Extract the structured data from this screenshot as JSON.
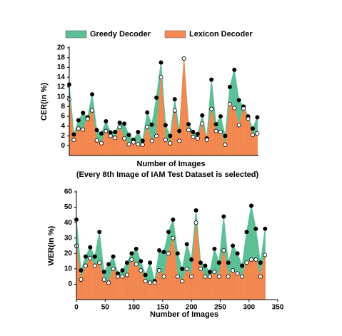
{
  "chart_data": [
    {
      "type": "area",
      "ylabel": "CER(in %)",
      "xlabel": "Number of Images",
      "subtitle": "(Every 8th Image of IAM Test Dataset is selected)",
      "x": [
        0,
        8,
        16,
        24,
        32,
        40,
        48,
        56,
        64,
        72,
        80,
        88,
        96,
        104,
        112,
        120,
        128,
        136,
        144,
        152,
        160,
        168,
        176,
        184,
        192,
        200,
        208,
        216,
        224,
        232,
        240,
        248,
        256,
        264,
        272,
        280,
        288,
        296,
        304,
        312,
        320,
        328
      ],
      "xlim": [
        0,
        330
      ],
      "ylim": [
        -2,
        20
      ],
      "yticks": [
        0,
        2,
        4,
        6,
        8,
        10,
        12,
        14,
        16,
        18,
        20
      ],
      "series": [
        {
          "name": "Greedy Decoder",
          "color": "#5dbf95",
          "values": [
            12.5,
            2.3,
            5.2,
            6.7,
            5.8,
            10.5,
            3.2,
            2.5,
            5,
            2.7,
            2.8,
            4.7,
            4.5,
            2.2,
            1.2,
            2.8,
            1,
            6.8,
            4.3,
            9.8,
            17,
            4.2,
            2,
            9.5,
            3,
            17.8,
            4.4,
            2.8,
            2.4,
            6.2,
            1.5,
            13.5,
            4.4,
            6,
            2,
            12,
            15.5,
            9.3,
            8,
            6,
            3.5,
            5.8
          ]
        },
        {
          "name": "Lexicon Decoder",
          "color": "#f58a52",
          "values": [
            9.5,
            1.2,
            3.5,
            3.3,
            5.5,
            7.2,
            1.1,
            0.5,
            3,
            2,
            1.6,
            3.8,
            1.5,
            0.3,
            0.7,
            0.3,
            0.2,
            3.8,
            1,
            2,
            14,
            1.2,
            0.5,
            7.2,
            1,
            17.8,
            3.2,
            1.8,
            1.5,
            4.5,
            1.2,
            7.5,
            3,
            2.8,
            0.2,
            8.5,
            7.7,
            4.2,
            7.6,
            5.5,
            2.2,
            2.5
          ]
        }
      ]
    },
    {
      "type": "area",
      "ylabel": "WER(in %)",
      "xlabel": "Number of Images",
      "x": [
        0,
        8,
        16,
        24,
        32,
        40,
        48,
        56,
        64,
        72,
        80,
        88,
        96,
        104,
        112,
        120,
        128,
        136,
        144,
        152,
        160,
        168,
        176,
        184,
        192,
        200,
        208,
        216,
        224,
        232,
        240,
        248,
        256,
        264,
        272,
        280,
        288,
        296,
        304,
        312,
        320,
        328
      ],
      "xlim": [
        0,
        350
      ],
      "xticks": [
        0,
        50,
        100,
        150,
        200,
        250,
        300,
        350
      ],
      "ylim": [
        -10,
        60
      ],
      "yticks": [
        0,
        10,
        20,
        30,
        40,
        50,
        60
      ],
      "series": [
        {
          "color": "#5dbf95",
          "values": [
            42,
            9,
            18,
            24,
            18,
            34,
            8,
            13,
            18,
            7,
            9,
            14,
            20,
            23,
            15,
            6,
            14,
            2,
            22,
            21,
            34,
            42,
            20,
            10,
            26,
            16,
            48,
            14,
            12,
            8,
            23,
            14,
            44,
            14,
            25,
            20,
            12,
            34,
            51,
            36,
            14,
            36
          ]
        },
        {
          "color": "#f58a52",
          "values": [
            25,
            3,
            12,
            17,
            12,
            14,
            3,
            1,
            10,
            5,
            5,
            6,
            16,
            13,
            9,
            2,
            1,
            1,
            9,
            5,
            20,
            30,
            5,
            2,
            10,
            5,
            40,
            10,
            5,
            5,
            8,
            5,
            22,
            5,
            9,
            7,
            5,
            14,
            16,
            16,
            5,
            19
          ]
        }
      ]
    }
  ]
}
